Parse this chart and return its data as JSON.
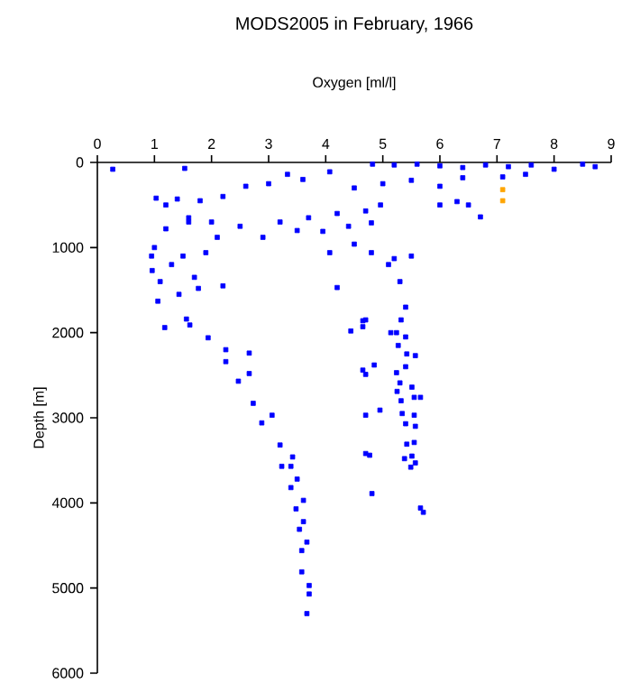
{
  "chart_data": {
    "type": "scatter",
    "title": "MODS2005 in February, 1966",
    "xlabel": "Oxygen [ml/l]",
    "ylabel": "Depth [m]",
    "xlim": [
      0,
      9
    ],
    "xticks": [
      0,
      1,
      2,
      3,
      4,
      5,
      6,
      7,
      8,
      9
    ],
    "ylim": [
      6000,
      0
    ],
    "yticks": [
      0,
      1000,
      2000,
      3000,
      4000,
      5000,
      6000
    ],
    "marker": "square",
    "grid": false,
    "series": [
      {
        "color": "#0000ff",
        "x": [
          0.27,
          1.53,
          4.82,
          5.2,
          5.6,
          6.0,
          6.4,
          6.8,
          7.2,
          7.6,
          8.0,
          8.5,
          8.72,
          7.5,
          7.1,
          6.71,
          6.5,
          6.3,
          6.0,
          6.0,
          6.4,
          5.5,
          5.0,
          4.5,
          4.07,
          3.6,
          3.33,
          3.0,
          2.6,
          2.2,
          1.8,
          1.4,
          1.2,
          1.03,
          2.9,
          3.5,
          3.95,
          4.4,
          4.8,
          4.2,
          3.7,
          3.2,
          2.5,
          2.0,
          1.6,
          0.96,
          1.06,
          1.43,
          1.77,
          1.9,
          1.2,
          1.6,
          2.1,
          2.2,
          1.0,
          1.3,
          1.5,
          1.7,
          0.95,
          1.1,
          4.07,
          4.2,
          4.5,
          4.8,
          4.7,
          4.96,
          5.1,
          5.2,
          5.3,
          5.4,
          5.5,
          4.7,
          1.18,
          1.56,
          1.62,
          1.94,
          2.25,
          2.25,
          2.66,
          2.66,
          2.47,
          2.73,
          2.88,
          3.06,
          3.2,
          3.42,
          3.23,
          3.39,
          3.5,
          3.39,
          3.61,
          3.48,
          3.61,
          3.54,
          3.67,
          3.58,
          3.58,
          3.71,
          3.71,
          3.67,
          4.44,
          4.65,
          4.65,
          4.65,
          4.7,
          4.85,
          4.7,
          4.95,
          4.7,
          4.77,
          4.81,
          5.14,
          5.24,
          5.32,
          5.4,
          5.27,
          5.42,
          5.57,
          5.4,
          5.24,
          5.3,
          5.25,
          5.51,
          5.55,
          5.66,
          5.32,
          5.34,
          5.55,
          5.4,
          5.57,
          5.42,
          5.55,
          5.51,
          5.38,
          5.57,
          5.49,
          5.66,
          5.71
        ],
        "values": [
          80,
          70,
          20,
          30,
          20,
          40,
          60,
          30,
          50,
          30,
          80,
          20,
          50,
          140,
          170,
          640,
          500,
          460,
          500,
          280,
          180,
          210,
          250,
          300,
          110,
          200,
          140,
          250,
          280,
          400,
          450,
          430,
          500,
          420,
          880,
          800,
          810,
          750,
          710,
          600,
          650,
          700,
          750,
          700,
          650,
          1270,
          1630,
          1550,
          1480,
          1060,
          780,
          700,
          880,
          1450,
          1000,
          1200,
          1100,
          1350,
          1100,
          1400,
          1060,
          1470,
          960,
          1060,
          570,
          500,
          1200,
          1130,
          1400,
          1700,
          1100,
          1850,
          1940,
          1840,
          1910,
          2060,
          2200,
          2340,
          2240,
          2480,
          2570,
          2830,
          3060,
          2970,
          3320,
          3460,
          3570,
          3570,
          3720,
          3820,
          3970,
          4070,
          4220,
          4310,
          4460,
          4560,
          4810,
          4970,
          5070,
          5300,
          1980,
          1930,
          1860,
          2440,
          2490,
          2380,
          2970,
          2910,
          3420,
          3440,
          3890,
          2000,
          2000,
          1850,
          2050,
          2150,
          2250,
          2270,
          2400,
          2470,
          2590,
          2690,
          2640,
          2760,
          2760,
          2800,
          2950,
          2970,
          3070,
          3100,
          3310,
          3290,
          3450,
          3480,
          3530,
          3580,
          4060,
          4110
        ]
      },
      {
        "color": "#ffa500",
        "x": [
          7.1,
          7.1
        ],
        "values": [
          320,
          450
        ]
      }
    ]
  }
}
